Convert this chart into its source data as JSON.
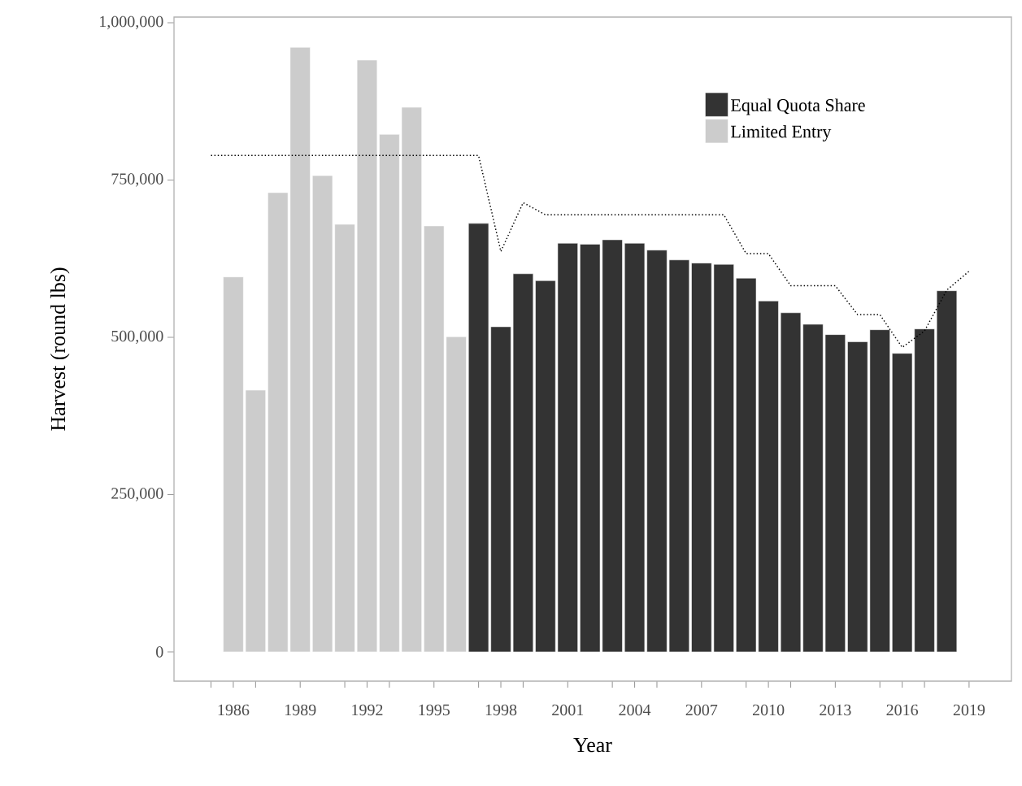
{
  "chart_data": {
    "type": "bar",
    "xlabel": "Year",
    "ylabel": "Harvest (round lbs)",
    "xlim": [
      1983.34,
      2020.9
    ],
    "ylim": [
      -46500,
      1009000
    ],
    "xticks": [
      {
        "value": 1985,
        "label": null
      },
      1986,
      {
        "value": 1987,
        "label": null
      },
      1989,
      {
        "value": 1991,
        "label": null
      },
      1992,
      {
        "value": 1993,
        "label": null
      },
      1995,
      {
        "value": 1997,
        "label": null
      },
      1998,
      {
        "value": 1999,
        "label": null
      },
      2001,
      {
        "value": 2003,
        "label": null
      },
      2004,
      {
        "value": 2005,
        "label": null
      },
      2007,
      {
        "value": 2009,
        "label": null
      },
      2010,
      {
        "value": 2011,
        "label": null
      },
      2013,
      {
        "value": 2015,
        "label": null
      },
      2016,
      {
        "value": 2017,
        "label": null
      },
      2019
    ],
    "yticks": [
      0,
      {
        "value": 250000,
        "label": "250,000"
      },
      {
        "value": 500000,
        "label": "500,000"
      },
      {
        "value": 750000,
        "label": "750,000"
      },
      {
        "value": 1000000,
        "label": "1,000,000"
      }
    ],
    "legend": "top right",
    "grid": false,
    "series": [
      {
        "name": "Equal Quota Share",
        "color": "#333333",
        "x": [
          1997,
          1998,
          1999,
          2000,
          2001,
          2002,
          2003,
          2004,
          2005,
          2006,
          2007,
          2008,
          2009,
          2010,
          2011,
          2012,
          2013,
          2014,
          2015,
          2016,
          2017,
          2018
        ],
        "values": [
          681000,
          516800,
          601000,
          590000,
          649500,
          648000,
          655000,
          649500,
          638600,
          623000,
          618000,
          616000,
          594000,
          557700,
          539000,
          520700,
          504300,
          493000,
          512000,
          474500,
          513300,
          574000
        ]
      },
      {
        "name": "Limited Entry",
        "color": "#cccccc",
        "x": [
          1986,
          1987,
          1988,
          1989,
          1990,
          1991,
          1992,
          1993,
          1994,
          1995,
          1996
        ],
        "values": [
          596000,
          416000,
          730000,
          961000,
          757000,
          679600,
          940600,
          822600,
          865600,
          677000,
          500900
        ]
      },
      {
        "type": "line",
        "color": "#000000",
        "line_style": "dotted",
        "marker": "none",
        "x": [
          1985,
          1997,
          1998,
          1999,
          2000,
          2008,
          2009,
          2010,
          2011,
          2013,
          2014,
          2015,
          2016,
          2017,
          2018,
          2019
        ],
        "values": [
          789000,
          789000,
          636500,
          714000,
          694700,
          694700,
          633000,
          633000,
          582000,
          582000,
          536000,
          536000,
          484000,
          510000,
          575000,
          605000
        ]
      }
    ]
  }
}
